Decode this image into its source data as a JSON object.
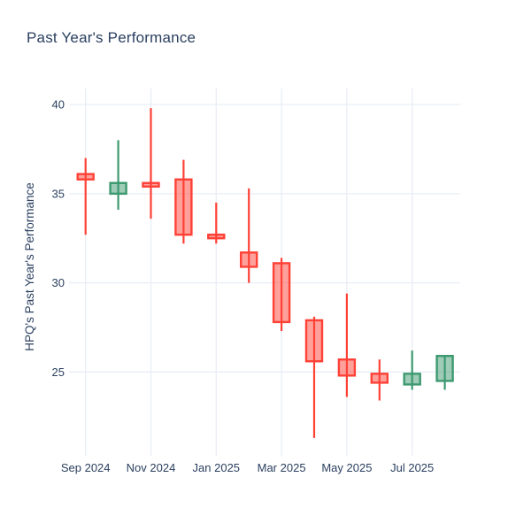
{
  "header": {
    "title": "Past Year's Performance"
  },
  "chart_data": {
    "type": "candlestick",
    "title": "Past Year's Performance",
    "xlabel": "",
    "ylabel": "HPQ's Past Year's Performance",
    "categories": [
      "Sep 2024",
      "Oct 2024",
      "Nov 2024",
      "Dec 2024",
      "Jan 2025",
      "Feb 2025",
      "Mar 2025",
      "Apr 2025",
      "May 2025",
      "Jun 2025",
      "Jul 2025",
      "Aug 2025"
    ],
    "series": [
      {
        "name": "HPQ monthly OHLC",
        "open": [
          36.1,
          35.0,
          35.6,
          35.8,
          32.7,
          31.7,
          31.1,
          27.9,
          25.7,
          24.9,
          24.3,
          24.5
        ],
        "high": [
          37.0,
          38.0,
          39.8,
          36.9,
          34.5,
          35.3,
          31.4,
          28.1,
          29.4,
          25.7,
          26.2,
          25.9
        ],
        "low": [
          32.7,
          34.1,
          33.6,
          32.2,
          32.2,
          30.0,
          27.3,
          21.3,
          23.6,
          23.4,
          24.0,
          24.0
        ],
        "close": [
          35.8,
          35.6,
          35.4,
          32.7,
          32.5,
          30.9,
          27.8,
          25.6,
          24.8,
          24.4,
          24.9,
          25.9
        ]
      }
    ],
    "x_tick_labels": [
      "Sep 2024",
      "Nov 2024",
      "Jan 2025",
      "Mar 2025",
      "May 2025",
      "Jul 2025"
    ],
    "y_ticks": [
      40,
      35,
      30,
      25
    ],
    "ylim": [
      20.3,
      40.9
    ],
    "grid": true,
    "legend_position": "none",
    "colors": {
      "increasing": "#3D9970",
      "decreasing": "#FF4136",
      "grid": "#e9edf5",
      "text": "#2a3f5f",
      "background": "#ffffff"
    }
  }
}
